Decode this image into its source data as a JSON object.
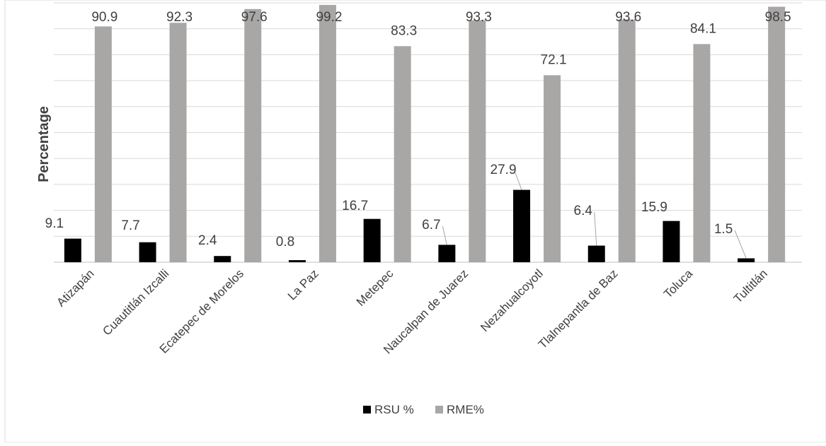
{
  "chart_data": {
    "type": "bar",
    "title": "",
    "xlabel": "",
    "ylabel": "Percentage",
    "ylim": [
      0,
      100
    ],
    "grid": true,
    "legend": "bottom",
    "categories": [
      "Atizapán",
      "Cuautitlán Izcalli",
      "Ecatepec de Morelos",
      "La Paz",
      "Metepec",
      "Naucalpan de Juarez",
      "Nezahualcoyotl",
      "Tlalnepantla de Baz",
      "Toluca",
      "Tultitlán"
    ],
    "series": [
      {
        "name": "RSU %",
        "color": "#000000",
        "values": [
          9.1,
          7.7,
          2.4,
          0.8,
          16.7,
          6.7,
          27.9,
          6.4,
          15.9,
          1.5
        ]
      },
      {
        "name": "RME%",
        "color": "#a9a6a6",
        "values": [
          90.9,
          92.3,
          97.6,
          99.2,
          83.3,
          93.3,
          72.1,
          93.6,
          84.1,
          98.5
        ]
      }
    ]
  }
}
